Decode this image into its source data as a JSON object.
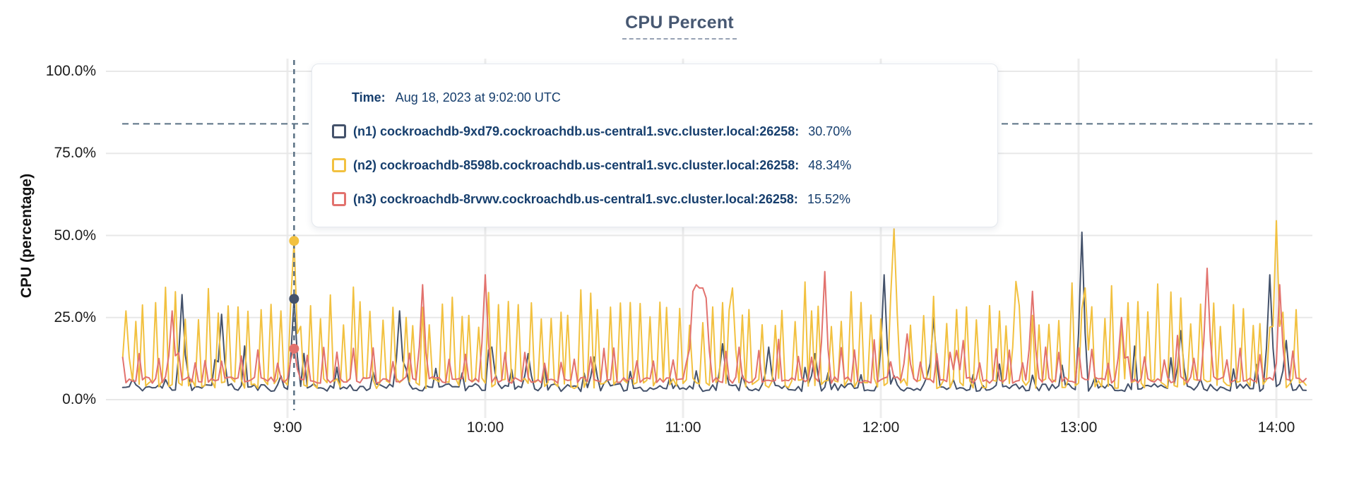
{
  "title": "CPU Percent",
  "y_axis": {
    "label": "CPU (percentage)",
    "ticks": [
      "100.0%",
      "75.0%",
      "50.0%",
      "25.0%",
      "0.0%"
    ]
  },
  "x_axis": {
    "ticks": [
      "9:00",
      "10:00",
      "11:00",
      "12:00",
      "13:00",
      "14:00"
    ]
  },
  "tooltip": {
    "time_label": "Time:",
    "time_value": "Aug 18, 2023 at 9:02:00 UTC",
    "rows": [
      {
        "id": "n1",
        "name": "(n1) cockroachdb-9xd79.cockroachdb.us-central1.svc.cluster.local:26258:",
        "value": "30.70%",
        "color": "#44526B"
      },
      {
        "id": "n2",
        "name": "(n2) cockroachdb-8598b.cockroachdb.us-central1.svc.cluster.local:26258:",
        "value": "48.34%",
        "color": "#F2C140"
      },
      {
        "id": "n3",
        "name": "(n3) cockroachdb-8rvwv.cockroachdb.us-central1.svc.cluster.local:26258:",
        "value": "15.52%",
        "color": "#E2726E"
      }
    ]
  },
  "colors": {
    "title": "#475872",
    "gridline": "#e8e8e8",
    "vertical_gridline": "#ededed",
    "crosshair": "#5a7184",
    "tooltip_text": "#163e6d"
  },
  "chart_data": {
    "type": "line",
    "title": "CPU Percent",
    "xlabel": "",
    "ylabel": "CPU (percentage)",
    "ylim": [
      0,
      100
    ],
    "y_tick_values": [
      100,
      75,
      50,
      25,
      0
    ],
    "x_tick_labels": [
      "9:00",
      "10:00",
      "11:00",
      "12:00",
      "13:00",
      "14:00"
    ],
    "x_tick_minutes": [
      540,
      600,
      660,
      720,
      780,
      840
    ],
    "time_range_minutes": [
      490,
      849
    ],
    "grid": true,
    "legend_position": "tooltip-overlay",
    "hover": {
      "time": "Aug 18, 2023 at 9:02:00 UTC",
      "minute": 542,
      "hline_percent": 84,
      "values": {
        "n1": 30.7,
        "n2": 48.34,
        "n3": 15.52
      }
    },
    "series": [
      {
        "name": "(n1) cockroachdb-9xd79.cockroachdb.us-central1.svc.cluster.local:26258",
        "short": "n1",
        "color": "#44526B",
        "seed": 11,
        "baseline": 3.7,
        "jitter": 1.2,
        "spikes": {
          "gap_min": 6,
          "gap_max": 12,
          "min": 6,
          "max": 11,
          "tall_chance": 0.08,
          "tall_min": 12,
          "tall_max": 17,
          "phase": 3
        },
        "peaks": [
          [
            508,
            32
          ],
          [
            520,
            26
          ],
          [
            542,
            30.7
          ],
          [
            574,
            27
          ],
          [
            602,
            16
          ],
          [
            613,
            14
          ],
          [
            633,
            13
          ],
          [
            672,
            17
          ],
          [
            686,
            16
          ],
          [
            700,
            14
          ],
          [
            721,
            38
          ],
          [
            736,
            25
          ],
          [
            781,
            51
          ],
          [
            811,
            21
          ],
          [
            838,
            38
          ],
          [
            843,
            18
          ]
        ]
      },
      {
        "name": "(n2) cockroachdb-8598b.cockroachdb.us-central1.svc.cluster.local:26258",
        "short": "n2",
        "color": "#F2C140",
        "seed": 7,
        "baseline": 5.0,
        "jitter": 1.6,
        "spikes": {
          "gap_min": 2.2,
          "gap_max": 3.8,
          "min": 22,
          "max": 30,
          "tall_chance": 0.12,
          "tall_min": 30,
          "tall_max": 36,
          "phase": 1
        },
        "peaks": [
          [
            491,
            27
          ],
          [
            542,
            48.34
          ],
          [
            675,
            34
          ],
          [
            724,
            52
          ],
          [
            761,
            36
          ],
          [
            782,
            34
          ],
          [
            840,
            54.5
          ]
        ]
      },
      {
        "name": "(n3) cockroachdb-8rvwv.cockroachdb.us-central1.svc.cluster.local:26258",
        "short": "n3",
        "color": "#E2726E",
        "seed": 23,
        "baseline": 6.0,
        "jitter": 1.0,
        "spikes": {
          "gap_min": 3.5,
          "gap_max": 6.5,
          "min": 11,
          "max": 16,
          "tall_chance": 0.05,
          "tall_min": 17,
          "tall_max": 20,
          "phase": 0
        },
        "peaks": [
          [
            505,
            27
          ],
          [
            542,
            15.52
          ],
          [
            581,
            35
          ],
          [
            600,
            38
          ],
          [
            663,
            33
          ],
          [
            664,
            35
          ],
          [
            665,
            34
          ],
          [
            666,
            34
          ],
          [
            667,
            31
          ],
          [
            703,
            39
          ],
          [
            728,
            20
          ],
          [
            743,
            15
          ],
          [
            766,
            33
          ],
          [
            793,
            25
          ],
          [
            819,
            40
          ],
          [
            841,
            35
          ]
        ]
      }
    ]
  }
}
